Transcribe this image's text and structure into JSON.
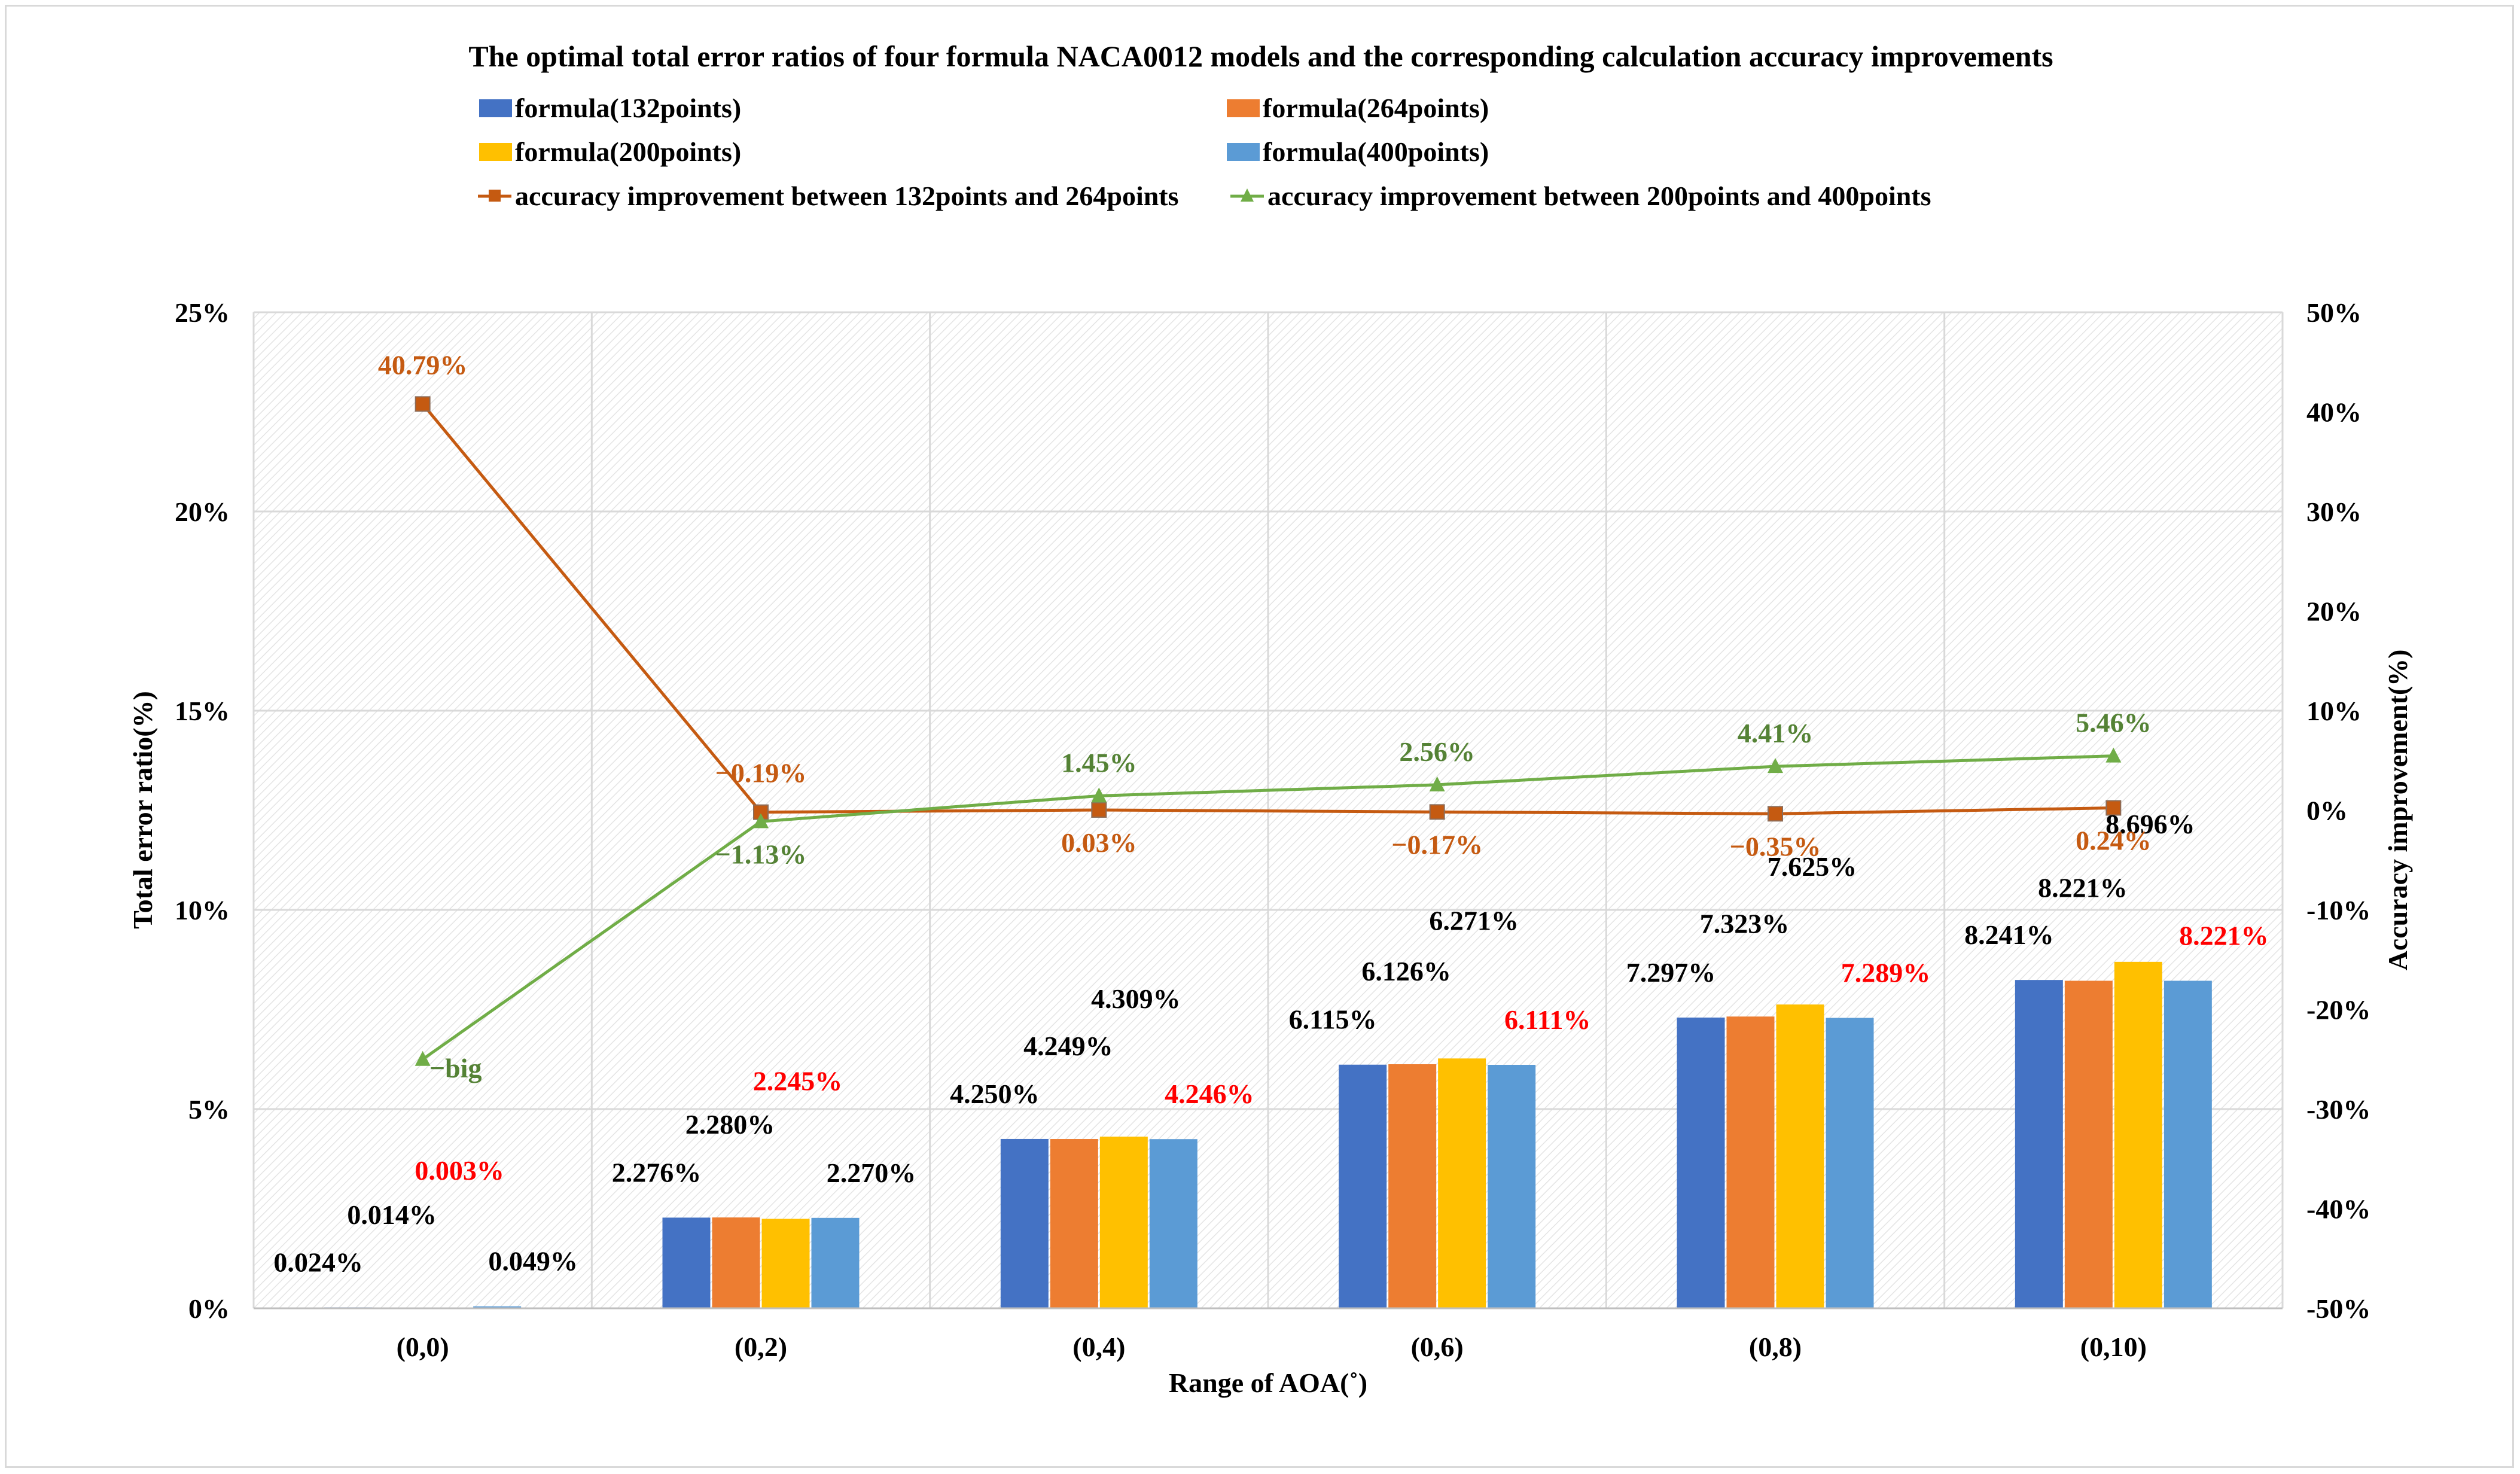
{
  "chart_data": {
    "type": "bar",
    "title": "The optimal total error ratios of four formula NACA0012 models and the corresponding calculation accuracy improvements",
    "xlabel": "Range of AOA(˚)",
    "ylabel": "Total error ratio(%)",
    "y2label": "Accuracy improvement(%)",
    "categories": [
      "(0,0)",
      "(0,2)",
      "(0,4)",
      "(0,6)",
      "(0,8)",
      "(0,10)"
    ],
    "ylim": [
      0,
      25
    ],
    "y_ticks": [
      "0%",
      "5%",
      "10%",
      "15%",
      "20%",
      "25%"
    ],
    "y2lim": [
      -50,
      50
    ],
    "y2_ticks": [
      "-50%",
      "-40%",
      "-30%",
      "-20%",
      "-10%",
      "0%",
      "10%",
      "20%",
      "30%",
      "40%",
      "50%"
    ],
    "grid": true,
    "legend_position": "top",
    "series": [
      {
        "name": "formula(132points)",
        "kind": "bar",
        "color": "#4472c4",
        "values": [
          0.024,
          2.276,
          4.25,
          6.115,
          7.297,
          8.241
        ],
        "labels": [
          "0.024%",
          "2.276%",
          "4.250%",
          "6.115%",
          "7.297%",
          "8.241%"
        ],
        "label_color": "#000000"
      },
      {
        "name": "formula(264points)",
        "kind": "bar",
        "color": "#ed7d31",
        "values": [
          0.014,
          2.28,
          4.249,
          6.126,
          7.323,
          8.221
        ],
        "labels": [
          "0.014%",
          "2.280%",
          "4.249%",
          "6.126%",
          "7.323%",
          "8.221%"
        ],
        "label_color": "#000000"
      },
      {
        "name": "formula(200points)",
        "kind": "bar",
        "color": "#ffc000",
        "values": [
          0.003,
          2.245,
          4.309,
          6.271,
          7.625,
          8.696
        ],
        "labels": [
          "0.003%",
          "2.245%",
          "4.309%",
          "6.271%",
          "7.625%",
          "8.696%"
        ],
        "label_colors": [
          "#ff0000",
          "#ff0000",
          "#000000",
          "#000000",
          "#000000",
          "#000000"
        ]
      },
      {
        "name": "formula(400points)",
        "kind": "bar",
        "color": "#5b9bd5",
        "values": [
          0.049,
          2.27,
          4.246,
          6.111,
          7.289,
          8.221
        ],
        "labels": [
          "0.049%",
          "2.270%",
          "4.246%",
          "6.111%",
          "7.289%",
          "8.221%"
        ],
        "label_colors": [
          "#000000",
          "#000000",
          "#ff0000",
          "#ff0000",
          "#ff0000",
          "#ff0000"
        ]
      },
      {
        "name": "accuracy improvement between 132points and 264points",
        "kind": "line",
        "axis": "right",
        "color": "#c55a11",
        "marker": "square",
        "values": [
          40.79,
          -0.19,
          0.03,
          -0.17,
          -0.35,
          0.24
        ],
        "labels": [
          "40.79%",
          "−0.19%",
          "0.03%",
          "−0.17%",
          "−0.35%",
          "0.24%"
        ],
        "label_color": "#c55a11"
      },
      {
        "name": "accuracy improvement between 200points and 400points",
        "kind": "line",
        "axis": "right",
        "color": "#70ad47",
        "marker": "triangle",
        "values": [
          -25.0,
          -1.13,
          1.45,
          2.56,
          4.41,
          5.46
        ],
        "labels": [
          "−big",
          "−1.13%",
          "1.45%",
          "2.56%",
          "4.41%",
          "5.46%"
        ],
        "label_color": "#548235"
      }
    ]
  }
}
